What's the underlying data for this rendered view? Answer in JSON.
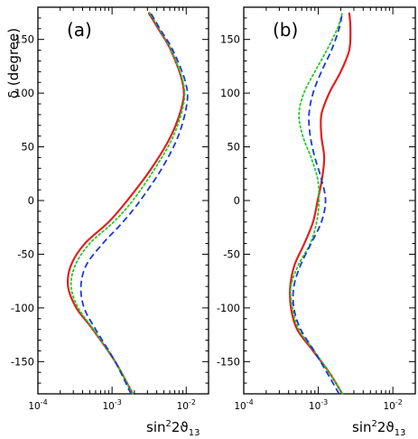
{
  "figure": {
    "ylabel": "δ (degree)",
    "xlabel_base": "sin",
    "xlabel_sup": "2",
    "xlabel_rest": "2ϑ",
    "xlabel_sub": "13"
  },
  "chart_data": [
    {
      "type": "line",
      "panel_label": "(a)",
      "xscale": "log",
      "xlim": [
        0.0001,
        0.02
      ],
      "ylim": [
        -180,
        180
      ],
      "ylabel": "δ (degree)",
      "xlabel": "sin²2ϑ13",
      "y_ticks": [
        -150,
        -100,
        -50,
        0,
        50,
        100,
        150
      ],
      "x_ticks": [
        {
          "value": 0.0001,
          "base": "10",
          "exp": "-4"
        },
        {
          "value": 0.001,
          "base": "10",
          "exp": "-3"
        },
        {
          "value": 0.01,
          "base": "10",
          "exp": "-2"
        }
      ],
      "series": [
        {
          "color": "#e02020",
          "dash": "solid",
          "points": [
            [
              0.0019,
              -180
            ],
            [
              0.0011,
              -150
            ],
            [
              0.00055,
              -120
            ],
            [
              0.00033,
              -100
            ],
            [
              0.000255,
              -80
            ],
            [
              0.00028,
              -60
            ],
            [
              0.00043,
              -40
            ],
            [
              0.0009,
              -20
            ],
            [
              0.0016,
              0
            ],
            [
              0.0034,
              30
            ],
            [
              0.0062,
              60
            ],
            [
              0.0089,
              90
            ],
            [
              0.0089,
              110
            ],
            [
              0.0062,
              140
            ],
            [
              0.0042,
              160
            ],
            [
              0.0031,
              175
            ]
          ]
        },
        {
          "color": "#22cc22",
          "dash": "dotted",
          "points": [
            [
              0.0019,
              -180
            ],
            [
              0.0011,
              -150
            ],
            [
              0.00056,
              -120
            ],
            [
              0.00035,
              -100
            ],
            [
              0.00028,
              -80
            ],
            [
              0.00032,
              -60
            ],
            [
              0.0005,
              -40
            ],
            [
              0.00105,
              -20
            ],
            [
              0.0019,
              0
            ],
            [
              0.0038,
              30
            ],
            [
              0.0067,
              60
            ],
            [
              0.0092,
              90
            ],
            [
              0.0091,
              110
            ],
            [
              0.0063,
              140
            ],
            [
              0.0043,
              160
            ],
            [
              0.0032,
              175
            ]
          ]
        },
        {
          "color": "#1a3ad6",
          "dash": "dashed",
          "points": [
            [
              0.0018,
              -180
            ],
            [
              0.0011,
              -150
            ],
            [
              0.0006,
              -120
            ],
            [
              0.00042,
              -100
            ],
            [
              0.00038,
              -80
            ],
            [
              0.00045,
              -60
            ],
            [
              0.00075,
              -40
            ],
            [
              0.0014,
              -20
            ],
            [
              0.0024,
              0
            ],
            [
              0.0047,
              30
            ],
            [
              0.0078,
              60
            ],
            [
              0.0102,
              90
            ],
            [
              0.0098,
              110
            ],
            [
              0.0066,
              140
            ],
            [
              0.0044,
              160
            ],
            [
              0.0033,
              175
            ]
          ]
        }
      ]
    },
    {
      "type": "line",
      "panel_label": "(b)",
      "xscale": "log",
      "xlim": [
        0.0001,
        0.02
      ],
      "ylim": [
        -180,
        180
      ],
      "ylabel": "",
      "xlabel": "sin²2ϑ13",
      "y_ticks": [
        -150,
        -100,
        -50,
        0,
        50,
        100,
        150
      ],
      "x_ticks": [
        {
          "value": 0.0001,
          "base": "10",
          "exp": "-4"
        },
        {
          "value": 0.001,
          "base": "10",
          "exp": "-3"
        },
        {
          "value": 0.01,
          "base": "10",
          "exp": "-2"
        }
      ],
      "series": [
        {
          "color": "#e02020",
          "dash": "solid",
          "points": [
            [
              0.0021,
              -180
            ],
            [
              0.0014,
              -160
            ],
            [
              0.00085,
              -140
            ],
            [
              0.00052,
              -120
            ],
            [
              0.00043,
              -100
            ],
            [
              0.00042,
              -80
            ],
            [
              0.00048,
              -60
            ],
            [
              0.00065,
              -40
            ],
            [
              0.00085,
              -20
            ],
            [
              0.00098,
              0
            ],
            [
              0.00112,
              20
            ],
            [
              0.0012,
              40
            ],
            [
              0.0011,
              60
            ],
            [
              0.0011,
              80
            ],
            [
              0.0014,
              100
            ],
            [
              0.002,
              120
            ],
            [
              0.0026,
              140
            ],
            [
              0.0027,
              160
            ],
            [
              0.0026,
              175
            ]
          ]
        },
        {
          "color": "#22cc22",
          "dash": "dotted",
          "points": [
            [
              0.0021,
              -180
            ],
            [
              0.0014,
              -160
            ],
            [
              0.00088,
              -140
            ],
            [
              0.00055,
              -120
            ],
            [
              0.00045,
              -100
            ],
            [
              0.00043,
              -80
            ],
            [
              0.00054,
              -60
            ],
            [
              0.00078,
              -40
            ],
            [
              0.00095,
              -20
            ],
            [
              0.00102,
              0
            ],
            [
              0.00098,
              20
            ],
            [
              0.0008,
              40
            ],
            [
              0.00062,
              60
            ],
            [
              0.00055,
              80
            ],
            [
              0.00064,
              100
            ],
            [
              0.0009,
              120
            ],
            [
              0.0013,
              140
            ],
            [
              0.0018,
              160
            ],
            [
              0.0021,
              175
            ]
          ]
        },
        {
          "color": "#1a3ad6",
          "dash": "dashed",
          "points": [
            [
              0.0019,
              -180
            ],
            [
              0.0013,
              -160
            ],
            [
              0.00088,
              -140
            ],
            [
              0.00058,
              -120
            ],
            [
              0.00047,
              -100
            ],
            [
              0.00047,
              -80
            ],
            [
              0.00058,
              -60
            ],
            [
              0.0008,
              -40
            ],
            [
              0.0011,
              -20
            ],
            [
              0.00125,
              0
            ],
            [
              0.0011,
              20
            ],
            [
              0.0009,
              40
            ],
            [
              0.00078,
              60
            ],
            [
              0.00075,
              80
            ],
            [
              0.00085,
              100
            ],
            [
              0.0011,
              120
            ],
            [
              0.0015,
              140
            ],
            [
              0.0019,
              160
            ],
            [
              0.0021,
              175
            ]
          ]
        }
      ]
    }
  ]
}
